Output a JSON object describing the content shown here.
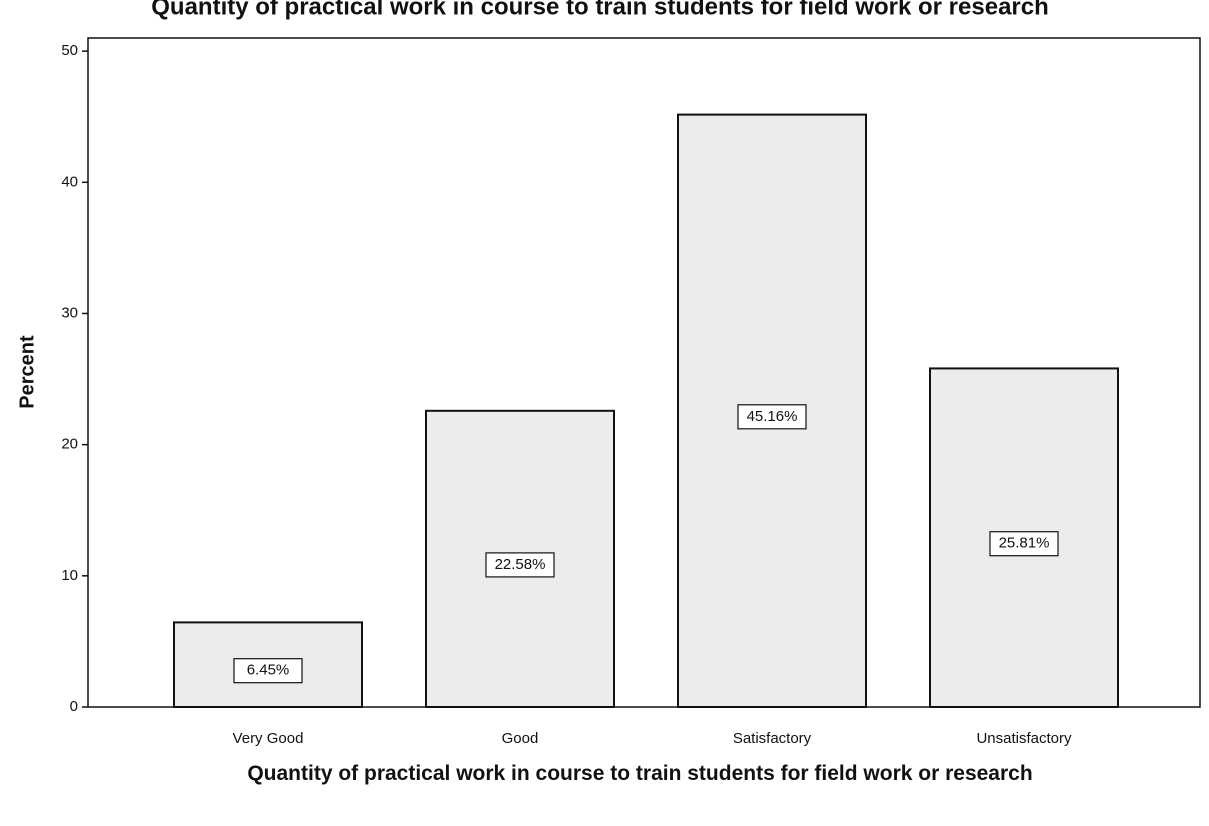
{
  "chart_data": {
    "type": "bar",
    "title": "Quantity of practical work in course to train students for field work or research",
    "x_label": "Quantity of practical work in course to train students for field work or research",
    "y_label": "Percent",
    "categories": [
      "Very Good",
      "Good",
      "Satisfactory",
      "Unsatisfactory"
    ],
    "values": [
      6.45,
      22.58,
      45.16,
      25.81
    ],
    "value_labels": [
      "6.45%",
      "22.58%",
      "45.16%",
      "25.81%"
    ],
    "color": "#ececec",
    "ylim": [
      0,
      51
    ],
    "yticks": [
      0,
      10,
      20,
      30,
      40,
      50
    ],
    "grid": false
  }
}
